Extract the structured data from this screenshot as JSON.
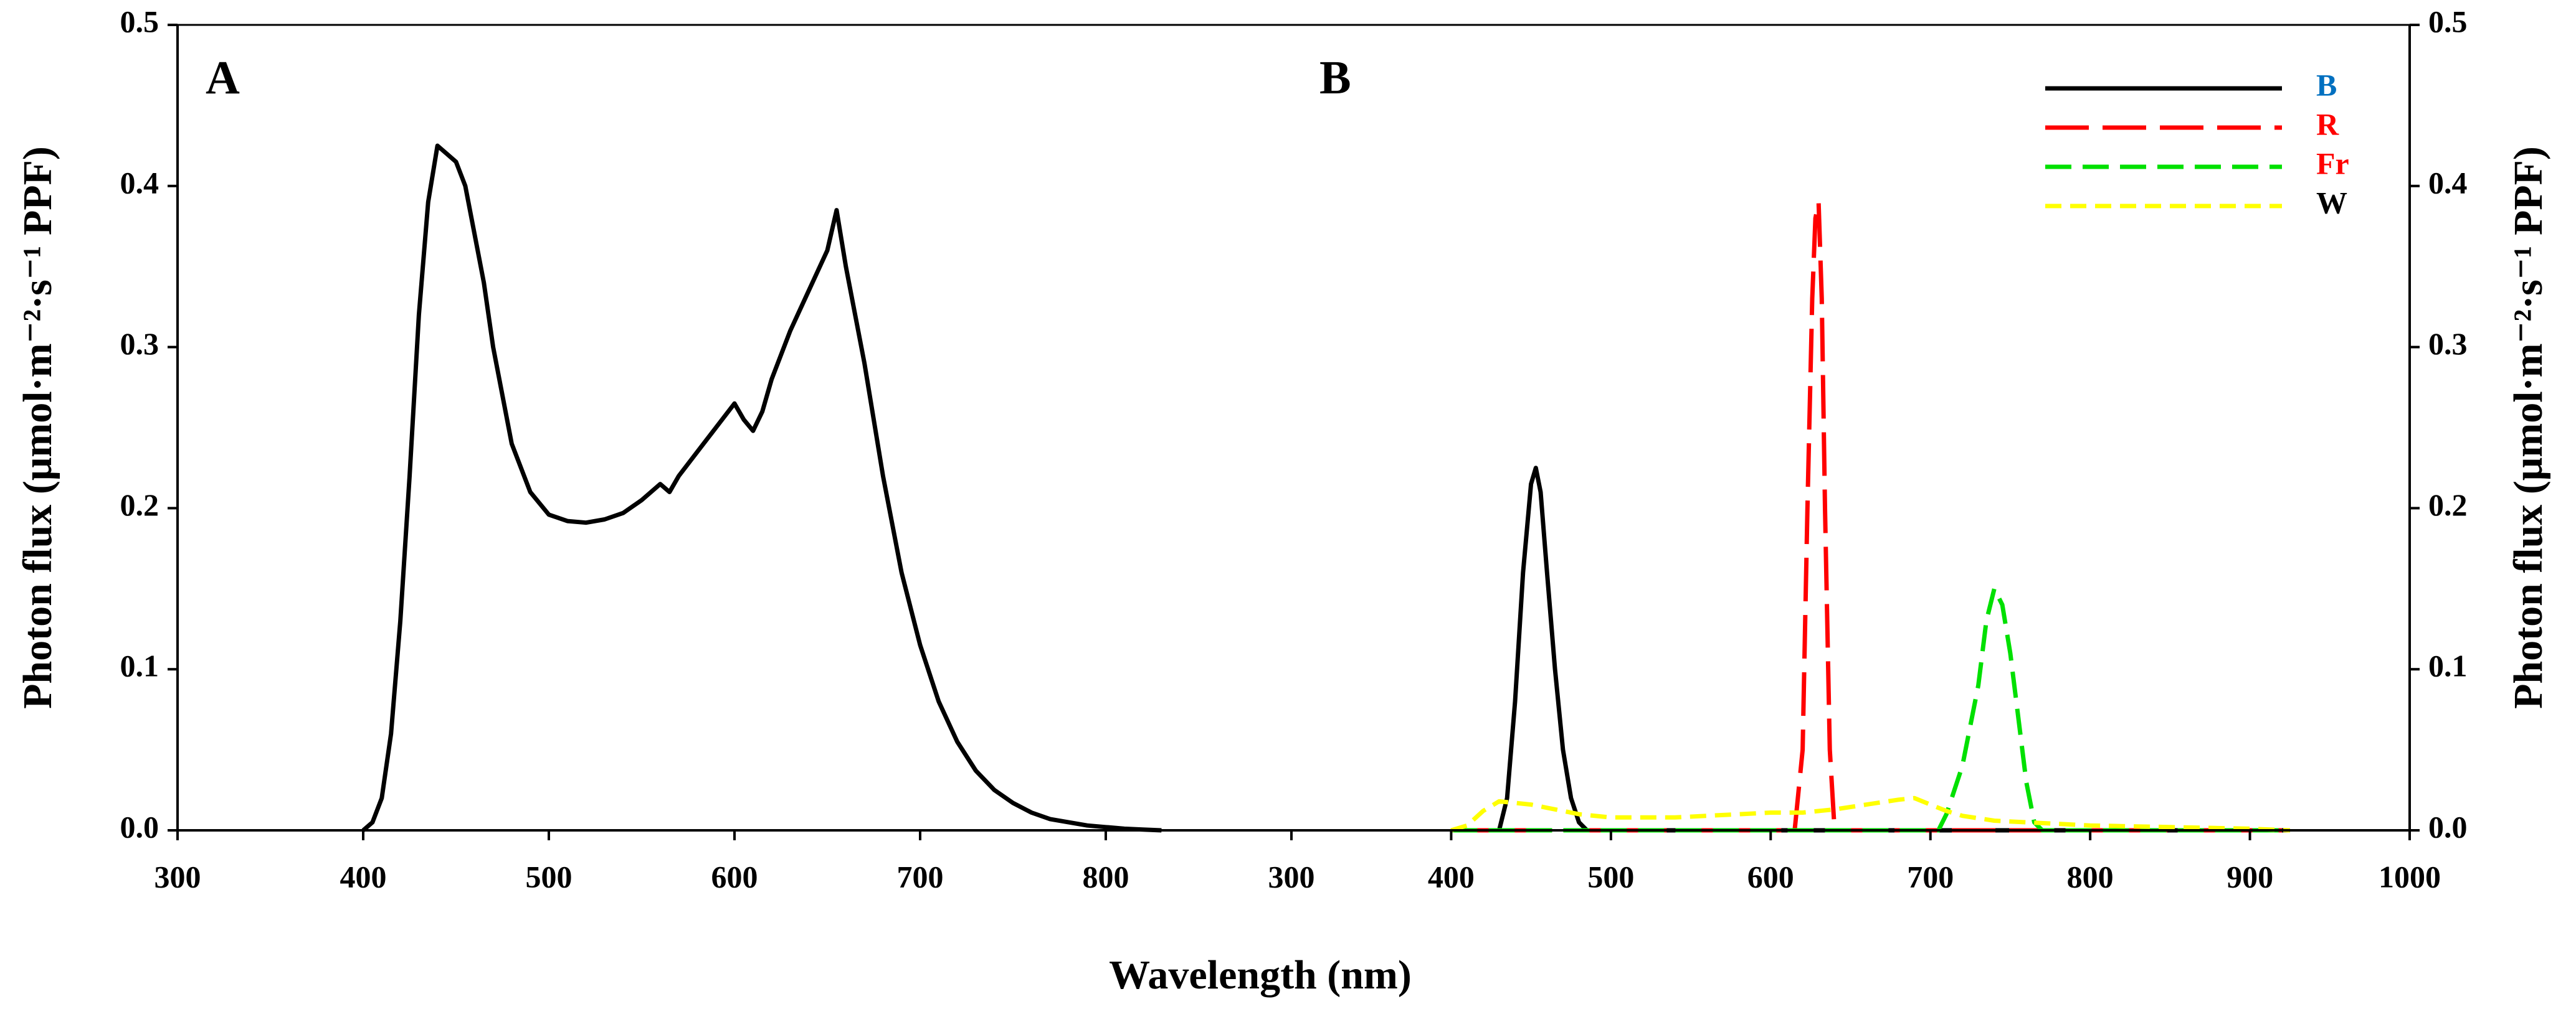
{
  "chart_data": [
    {
      "type": "line",
      "panel_label": "A",
      "ylabel": "Photon flux (μmol·m⁻²·s⁻¹ PPF)",
      "xlabel": "Wavelength (nm)",
      "xlim": [
        300,
        900
      ],
      "xticks": [
        300,
        400,
        500,
        600,
        700,
        800
      ],
      "ylim": [
        0,
        0.5
      ],
      "yticks": [
        {
          "value": 0,
          "label": "0.0"
        },
        0.1,
        0.2,
        0.3,
        0.4,
        0.5
      ],
      "yaxis_side": "left",
      "series": [
        {
          "name": null,
          "color": "#000000",
          "line_style": "solid",
          "x": [
            400,
            405,
            410,
            415,
            420,
            425,
            430,
            435,
            440,
            445,
            450,
            455,
            460,
            465,
            470,
            475,
            480,
            490,
            500,
            510,
            520,
            530,
            540,
            550,
            560,
            565,
            570,
            580,
            590,
            600,
            605,
            610,
            615,
            620,
            630,
            640,
            650,
            655,
            660,
            670,
            680,
            690,
            700,
            710,
            720,
            730,
            740,
            750,
            760,
            770,
            780,
            790,
            800,
            810,
            820,
            830
          ],
          "values": [
            0,
            0.005,
            0.02,
            0.06,
            0.13,
            0.22,
            0.32,
            0.39,
            0.425,
            0.42,
            0.415,
            0.4,
            0.37,
            0.34,
            0.3,
            0.27,
            0.24,
            0.21,
            0.196,
            0.192,
            0.191,
            0.193,
            0.197,
            0.205,
            0.215,
            0.21,
            0.22,
            0.235,
            0.25,
            0.265,
            0.255,
            0.248,
            0.26,
            0.28,
            0.31,
            0.335,
            0.36,
            0.385,
            0.35,
            0.29,
            0.22,
            0.16,
            0.115,
            0.08,
            0.055,
            0.037,
            0.025,
            0.017,
            0.011,
            0.007,
            0.005,
            0.003,
            0.002,
            0.001,
            0.0005,
            0
          ]
        }
      ]
    },
    {
      "type": "line",
      "panel_label": "B",
      "ylabel": "Photon flux (μmol·m⁻²·s⁻¹ PPF)",
      "xlim": [
        300,
        1000
      ],
      "xticks": [
        300,
        400,
        500,
        600,
        700,
        800,
        900,
        1000
      ],
      "ylim": [
        0,
        0.5
      ],
      "yticks": [
        {
          "value": 0,
          "label": "0.0"
        },
        0.1,
        0.2,
        0.3,
        0.4,
        0.5
      ],
      "yaxis_side": "right",
      "legend": "upper right",
      "series": [
        {
          "name": "B",
          "color": "#000000",
          "label_color": "#0070c0",
          "line_style": "solid",
          "x": [
            400,
            430,
            435,
            440,
            445,
            450,
            453,
            456,
            460,
            465,
            470,
            475,
            480,
            485,
            925
          ],
          "values": [
            0,
            0,
            0.02,
            0.08,
            0.16,
            0.215,
            0.225,
            0.21,
            0.16,
            0.1,
            0.05,
            0.02,
            0.005,
            0,
            0
          ]
        },
        {
          "name": "R",
          "color": "#ff0000",
          "label_color": "#ff0000",
          "line_style": "longdash",
          "x": [
            400,
            615,
            620,
            623,
            626,
            628,
            630,
            632,
            634,
            637,
            640,
            925
          ],
          "values": [
            0,
            0,
            0.05,
            0.2,
            0.33,
            0.38,
            0.39,
            0.33,
            0.2,
            0.05,
            0,
            0
          ]
        },
        {
          "name": "Fr",
          "color": "#00e000",
          "label_color": "#ff0000",
          "line_style": "dash",
          "x": [
            400,
            705,
            710,
            720,
            730,
            735,
            740,
            745,
            750,
            755,
            760,
            765,
            770,
            925
          ],
          "values": [
            0,
            0,
            0.01,
            0.04,
            0.09,
            0.13,
            0.15,
            0.14,
            0.11,
            0.07,
            0.03,
            0.005,
            0,
            0
          ]
        },
        {
          "name": "W",
          "color": "#ffff00",
          "label_color": "#000000",
          "line_style": "shortdash",
          "x": [
            400,
            410,
            420,
            430,
            440,
            450,
            460,
            470,
            480,
            500,
            520,
            540,
            560,
            580,
            600,
            620,
            640,
            660,
            680,
            690,
            700,
            710,
            720,
            740,
            760,
            780,
            800,
            850,
            900,
            925
          ],
          "values": [
            0,
            0.003,
            0.012,
            0.018,
            0.017,
            0.016,
            0.014,
            0.012,
            0.01,
            0.008,
            0.008,
            0.008,
            0.009,
            0.01,
            0.011,
            0.011,
            0.013,
            0.016,
            0.019,
            0.02,
            0.016,
            0.012,
            0.009,
            0.006,
            0.005,
            0.004,
            0.003,
            0.002,
            0.001,
            0
          ]
        }
      ]
    }
  ]
}
